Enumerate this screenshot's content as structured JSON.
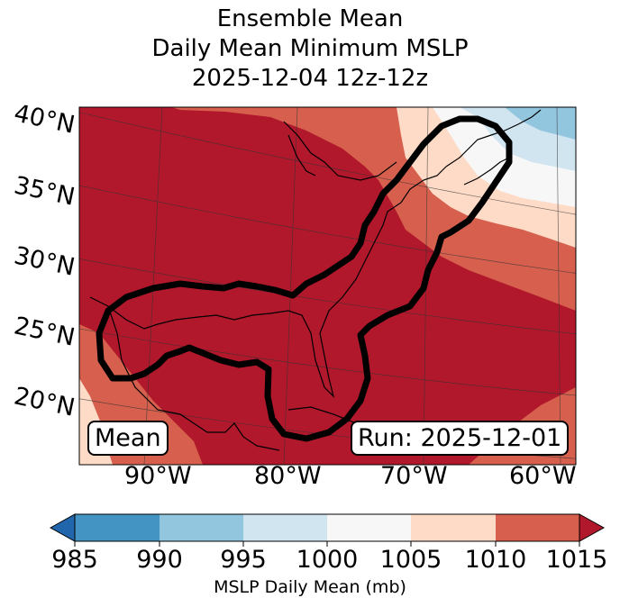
{
  "title": {
    "line1": "Ensemble Mean",
    "line2": "Daily Mean Minimum MSLP",
    "line3": "2025-12-04 12z-12z"
  },
  "chart_data": {
    "type": "heatmap",
    "description_units": "mb",
    "lat_labels": [
      "40°N",
      "35°N",
      "30°N",
      "25°N",
      "20°N"
    ],
    "lon_labels": [
      "90°W",
      "80°W",
      "70°W",
      "60°W"
    ],
    "lon_range": [
      -96,
      -58
    ],
    "lat_range": [
      17,
      42
    ],
    "colorbar": {
      "label": "MSLP Daily Mean (mb)",
      "ticks": [
        "985",
        "990",
        "995",
        "1000",
        "1005",
        "1010",
        "1015"
      ],
      "bins": [
        {
          "range": [
            985,
            990
          ],
          "color": "#4393c3"
        },
        {
          "range": [
            990,
            995
          ],
          "color": "#92c5de"
        },
        {
          "range": [
            995,
            1000
          ],
          "color": "#d1e5f0"
        },
        {
          "range": [
            1000,
            1005
          ],
          "color": "#f7f7f7"
        },
        {
          "range": [
            1005,
            1010
          ],
          "color": "#fddbc7"
        },
        {
          "range": [
            1010,
            1015
          ],
          "color": "#d6604d"
        }
      ],
      "under_color": "#2166ac",
      "over_color": "#b2182b"
    },
    "dominant_field": ">1015 mb over most of domain",
    "contour_outline": "Area of interest from Gulf of Mexico along US East Coast to Gulf of Maine"
  },
  "annotations": {
    "mean_label": "Mean",
    "run_label": "Run: 2025-12-01"
  }
}
